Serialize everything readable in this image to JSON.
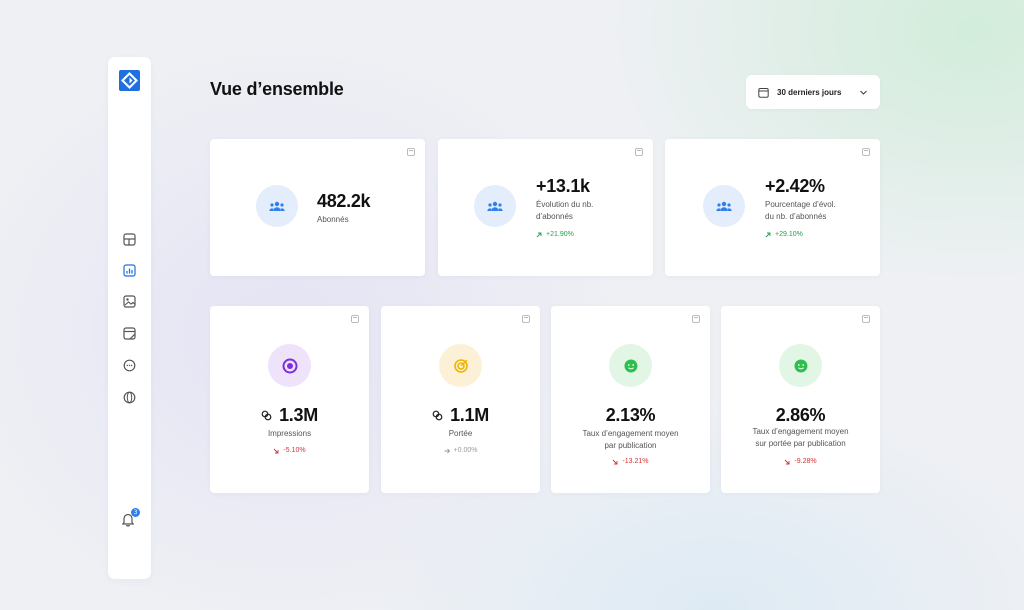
{
  "header": {
    "title": "Vue d’ensemble",
    "date_range": "30 derniers jours"
  },
  "sidebar": {
    "items": [
      {
        "icon": "layout-icon"
      },
      {
        "icon": "bar-chart-icon",
        "active": true
      },
      {
        "icon": "image-icon"
      },
      {
        "icon": "calendar-card-icon"
      },
      {
        "icon": "chat-icon"
      },
      {
        "icon": "globe-icon"
      }
    ],
    "notification_count": "3"
  },
  "top_cards": [
    {
      "value": "482.2k",
      "label": "Abonnés",
      "change": ""
    },
    {
      "value": "+13.1k",
      "label_lines": [
        "Évolution du nb.",
        "d’abonnés"
      ],
      "change": "+21.90%"
    },
    {
      "value": "+2.42%",
      "label_lines": [
        "Pourcentage d’évol.",
        "du nb. d’abonnés"
      ],
      "change": "+29.10%"
    }
  ],
  "bottom_cards": [
    {
      "value": "1.3M",
      "label_lines": [
        "Impressions"
      ],
      "change": "-5.10%",
      "trend": "down"
    },
    {
      "value": "1.1M",
      "label_lines": [
        "Portée"
      ],
      "change": "+0.00%",
      "trend": "flat"
    },
    {
      "value": "2.13%",
      "label_lines": [
        "Taux d’engagement moyen",
        "par publication"
      ],
      "change": "-13.21%",
      "trend": "down"
    },
    {
      "value": "2.86%",
      "label_lines": [
        "Taux d’engagement moyen",
        "sur portée par publication"
      ],
      "change": "-9.28%",
      "trend": "down"
    }
  ],
  "colors": {
    "accent_blue": "#2f80ed",
    "up_green": "#22a14a",
    "down_red": "#d63333",
    "impressions_purple": "#7b2fe0",
    "reach_yellow": "#f0b400",
    "engagement_green": "#2ec04f"
  }
}
